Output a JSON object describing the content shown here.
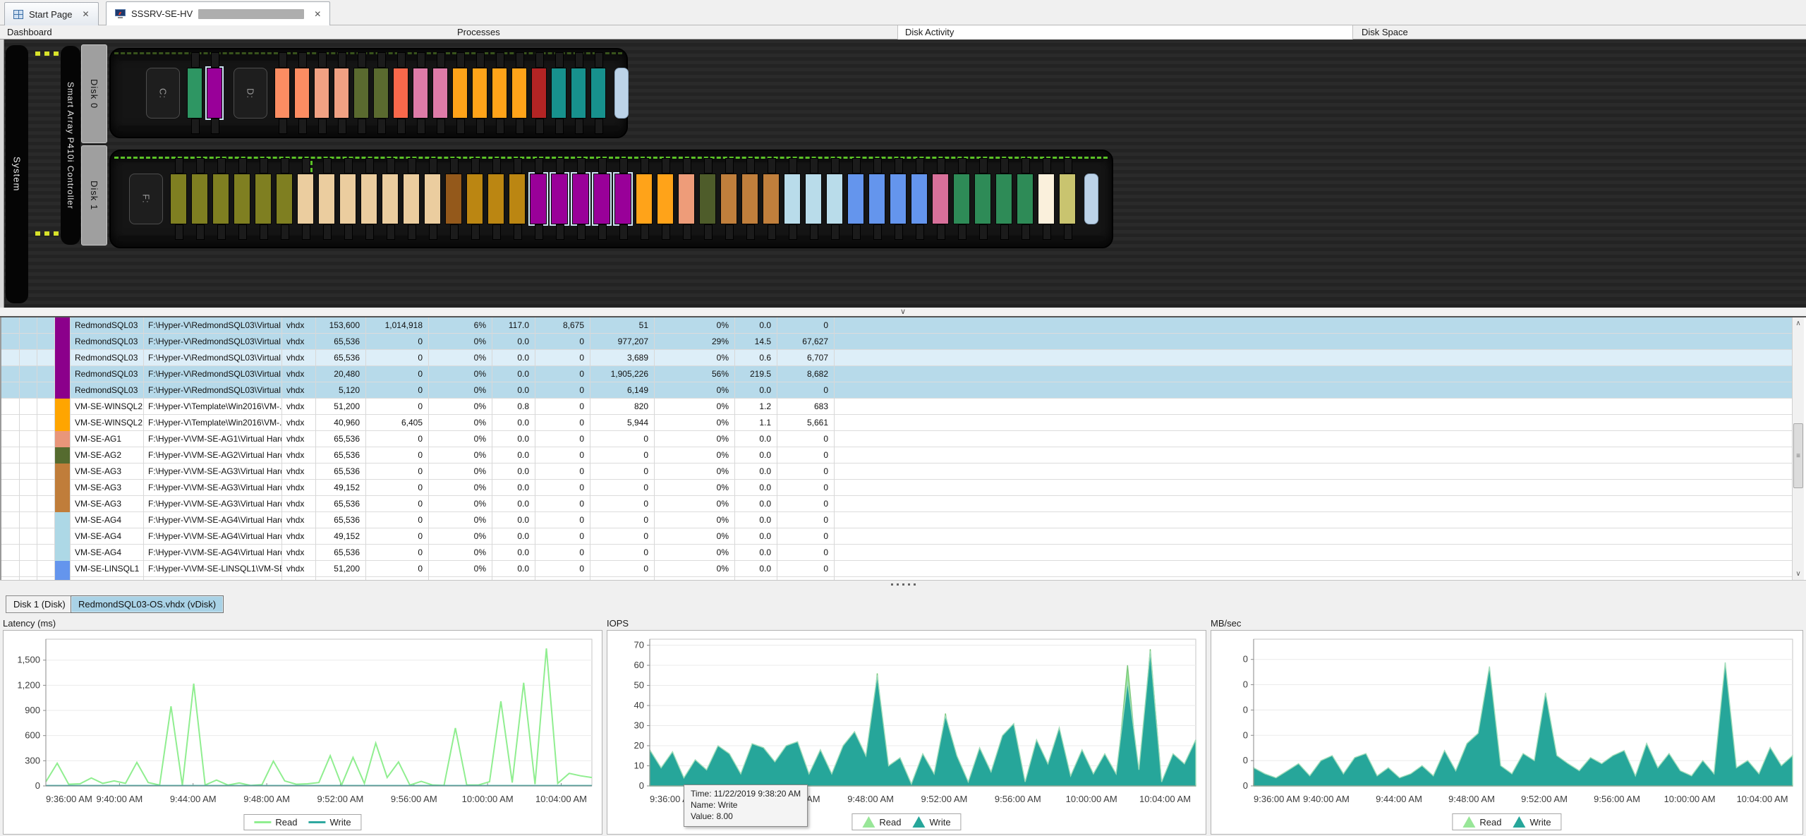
{
  "tabs": {
    "start_page": "Start Page",
    "server_tab": "SSSRV-SE-HV",
    "close_glyph": "✕"
  },
  "sections": {
    "dashboard": "Dashboard",
    "processes": "Processes",
    "disk_activity": "Disk Activity",
    "disk_space": "Disk Space"
  },
  "dashboard": {
    "system_label": "System",
    "controller_label": "Smart Array P410i Controller",
    "disk0_label": "Disk 0",
    "disk1_label": "Disk 1",
    "disk0_segments": [
      {
        "label": "C:"
      },
      {
        "blocks": [
          [
            "#2E9663",
            1,
            false
          ],
          [
            "#990099",
            1,
            true
          ]
        ]
      },
      {
        "label": "D:"
      },
      {
        "blocks": [
          [
            "#FC8D62",
            2,
            false
          ],
          [
            "#F0A183",
            2,
            false
          ],
          [
            "#5A6A2F",
            2,
            false
          ],
          [
            "#F9684B",
            1,
            false
          ],
          [
            "#DE7BA8",
            2,
            false
          ],
          [
            "#FFA319",
            4,
            false
          ],
          [
            "#B32424",
            1,
            false
          ],
          [
            "#17918D",
            3,
            false
          ]
        ]
      },
      {
        "endcap": true
      }
    ],
    "disk1_segments": [
      {
        "label": "F:"
      },
      {
        "blocks": [
          [
            "#7F7F21",
            6,
            false
          ],
          [
            "#EBCD9F",
            7,
            false
          ],
          [
            "#94591B",
            1,
            false
          ],
          [
            "#BB8612",
            3,
            false
          ],
          [
            "#990099",
            5,
            true
          ],
          [
            "#FFA319",
            2,
            false
          ],
          [
            "#EE9C79",
            1,
            false
          ],
          [
            "#4E5C2A",
            1,
            false
          ],
          [
            "#C07F3C",
            3,
            false
          ],
          [
            "#B9DCEA",
            3,
            false
          ],
          [
            "#6495ED",
            4,
            false
          ],
          [
            "#D8709A",
            1,
            false
          ],
          [
            "#2E8B57",
            4,
            false
          ],
          [
            "#FAF0DC",
            1,
            false
          ],
          [
            "#C9C46F",
            1,
            false
          ]
        ]
      },
      {
        "endcap": true
      }
    ]
  },
  "table": {
    "rows": [
      {
        "swatch": "#8B008B",
        "selected": true,
        "focus": false,
        "name": "RedmondSQL03",
        "path": "F:\\Hyper-V\\RedmondSQL03\\Virtual ...",
        "type": "vhdx",
        "cells": [
          "153,600",
          "1,014,918",
          "6%",
          "117.0",
          "8,675",
          "51",
          "0%",
          "0.0",
          "0"
        ]
      },
      {
        "swatch": "#8B008B",
        "selected": true,
        "focus": false,
        "name": "RedmondSQL03",
        "path": "F:\\Hyper-V\\RedmondSQL03\\Virtual ...",
        "type": "vhdx",
        "cells": [
          "65,536",
          "0",
          "0%",
          "0.0",
          "0",
          "977,207",
          "29%",
          "14.5",
          "67,627"
        ]
      },
      {
        "swatch": "#8B008B",
        "selected": true,
        "focus": true,
        "name": "RedmondSQL03",
        "path": "F:\\Hyper-V\\RedmondSQL03\\Virtual ...",
        "type": "vhdx",
        "cells": [
          "65,536",
          "0",
          "0%",
          "0.0",
          "0",
          "3,689",
          "0%",
          "0.6",
          "6,707"
        ]
      },
      {
        "swatch": "#8B008B",
        "selected": true,
        "focus": false,
        "name": "RedmondSQL03",
        "path": "F:\\Hyper-V\\RedmondSQL03\\Virtual ...",
        "type": "vhdx",
        "cells": [
          "20,480",
          "0",
          "0%",
          "0.0",
          "0",
          "1,905,226",
          "56%",
          "219.5",
          "8,682"
        ]
      },
      {
        "swatch": "#8B008B",
        "selected": true,
        "focus": false,
        "name": "RedmondSQL03",
        "path": "F:\\Hyper-V\\RedmondSQL03\\Virtual ...",
        "type": "vhdx",
        "cells": [
          "5,120",
          "0",
          "0%",
          "0.0",
          "0",
          "6,149",
          "0%",
          "0.0",
          "0"
        ]
      },
      {
        "swatch": "#FFA500",
        "selected": false,
        "focus": false,
        "name": "VM-SE-WINSQL2",
        "path": "F:\\Hyper-V\\Template\\Win2016\\VM-...",
        "type": "vhdx",
        "cells": [
          "51,200",
          "0",
          "0%",
          "0.8",
          "0",
          "820",
          "0%",
          "1.2",
          "683"
        ]
      },
      {
        "swatch": "#FFA500",
        "selected": false,
        "focus": false,
        "name": "VM-SE-WINSQL2",
        "path": "F:\\Hyper-V\\Template\\Win2016\\VM-...",
        "type": "vhdx",
        "cells": [
          "40,960",
          "6,405",
          "0%",
          "0.0",
          "0",
          "5,944",
          "0%",
          "1.1",
          "5,661"
        ]
      },
      {
        "swatch": "#E9967A",
        "selected": false,
        "focus": false,
        "name": "VM-SE-AG1",
        "path": "F:\\Hyper-V\\VM-SE-AG1\\Virtual Hard ...",
        "type": "vhdx",
        "cells": [
          "65,536",
          "0",
          "0%",
          "0.0",
          "0",
          "0",
          "0%",
          "0.0",
          "0"
        ]
      },
      {
        "swatch": "#556B2F",
        "selected": false,
        "focus": false,
        "name": "VM-SE-AG2",
        "path": "F:\\Hyper-V\\VM-SE-AG2\\Virtual Hard ...",
        "type": "vhdx",
        "cells": [
          "65,536",
          "0",
          "0%",
          "0.0",
          "0",
          "0",
          "0%",
          "0.0",
          "0"
        ]
      },
      {
        "swatch": "#C07D3A",
        "selected": false,
        "focus": false,
        "name": "VM-SE-AG3",
        "path": "F:\\Hyper-V\\VM-SE-AG3\\Virtual Hard ...",
        "type": "vhdx",
        "cells": [
          "65,536",
          "0",
          "0%",
          "0.0",
          "0",
          "0",
          "0%",
          "0.0",
          "0"
        ]
      },
      {
        "swatch": "#C07D3A",
        "selected": false,
        "focus": false,
        "name": "VM-SE-AG3",
        "path": "F:\\Hyper-V\\VM-SE-AG3\\Virtual Hard ...",
        "type": "vhdx",
        "cells": [
          "49,152",
          "0",
          "0%",
          "0.0",
          "0",
          "0",
          "0%",
          "0.0",
          "0"
        ]
      },
      {
        "swatch": "#C07D3A",
        "selected": false,
        "focus": false,
        "name": "VM-SE-AG3",
        "path": "F:\\Hyper-V\\VM-SE-AG3\\Virtual Hard ...",
        "type": "vhdx",
        "cells": [
          "65,536",
          "0",
          "0%",
          "0.0",
          "0",
          "0",
          "0%",
          "0.0",
          "0"
        ]
      },
      {
        "swatch": "#ADD8E6",
        "selected": false,
        "focus": false,
        "name": "VM-SE-AG4",
        "path": "F:\\Hyper-V\\VM-SE-AG4\\Virtual Hard ...",
        "type": "vhdx",
        "cells": [
          "65,536",
          "0",
          "0%",
          "0.0",
          "0",
          "0",
          "0%",
          "0.0",
          "0"
        ]
      },
      {
        "swatch": "#ADD8E6",
        "selected": false,
        "focus": false,
        "name": "VM-SE-AG4",
        "path": "F:\\Hyper-V\\VM-SE-AG4\\Virtual Hard ...",
        "type": "vhdx",
        "cells": [
          "49,152",
          "0",
          "0%",
          "0.0",
          "0",
          "0",
          "0%",
          "0.0",
          "0"
        ]
      },
      {
        "swatch": "#ADD8E6",
        "selected": false,
        "focus": false,
        "name": "VM-SE-AG4",
        "path": "F:\\Hyper-V\\VM-SE-AG4\\Virtual Hard ...",
        "type": "vhdx",
        "cells": [
          "65,536",
          "0",
          "0%",
          "0.0",
          "0",
          "0",
          "0%",
          "0.0",
          "0"
        ]
      },
      {
        "swatch": "#6495ED",
        "selected": false,
        "focus": false,
        "name": "VM-SE-LINSQL1",
        "path": "F:\\Hyper-V\\VM-SE-LINSQL1\\VM-SE-...",
        "type": "vhdx",
        "cells": [
          "51,200",
          "0",
          "0%",
          "0.0",
          "0",
          "0",
          "0%",
          "0.0",
          "0"
        ]
      },
      {
        "swatch": "#6495ED",
        "selected": false,
        "focus": false,
        "name": "",
        "path": "",
        "type": "",
        "cells": [
          "",
          "",
          "",
          "",
          "",
          "",
          "",
          "",
          ""
        ]
      }
    ]
  },
  "vdisk_tabs": {
    "disk_tab": "Disk 1 (Disk)",
    "vdisk_tab": "RedmondSQL03-OS.vhdx (vDisk)"
  },
  "tooltip": {
    "time": "Time: 11/22/2019 9:38:20 AM",
    "name": "Name: Write",
    "value": "Value: 8.00"
  },
  "colors": {
    "read_green": "#90EE90",
    "write_teal": "#26A69A",
    "selection_blue": "#B7DAEA",
    "selected_block_outline": "#CFE3F5"
  },
  "chart_data": [
    {
      "type": "line",
      "title": "Latency (ms)",
      "ylabel": "ms",
      "y_max": 1750,
      "y_ticks": [
        {
          "v": 1500,
          "label": "1,500"
        },
        {
          "v": 1200,
          "label": "1,200"
        },
        {
          "v": 900,
          "label": "900"
        },
        {
          "v": 600,
          "label": "600"
        },
        {
          "v": 300,
          "label": "300"
        },
        {
          "v": 0,
          "label": "0"
        }
      ],
      "x_labels": [
        "9:36:00 AM",
        "9:40:00 AM",
        "9:44:00 AM",
        "9:48:00 AM",
        "9:52:00 AM",
        "9:56:00 AM",
        "10:00:00 AM",
        "10:04:00 AM"
      ],
      "x_span_s": 1780,
      "x_step_s": 240,
      "legend_position": "bottom",
      "grid": true,
      "series": [
        {
          "name": "Read",
          "color": "#90EE90",
          "values": [
            50,
            270,
            20,
            25,
            95,
            30,
            60,
            30,
            280,
            40,
            10,
            950,
            5,
            1220,
            10,
            70,
            10,
            35,
            5,
            15,
            295,
            60,
            20,
            25,
            40,
            360,
            10,
            340,
            30,
            510,
            100,
            285,
            10,
            55,
            10,
            5,
            690,
            10,
            10,
            50,
            1010,
            40,
            1230,
            20,
            1640,
            30,
            150,
            120,
            100
          ]
        },
        {
          "name": "Write",
          "color": "#2FA8A0",
          "values": [
            3,
            3,
            3,
            3,
            3,
            3,
            3,
            3,
            3,
            3,
            3,
            3,
            3,
            3,
            3,
            3,
            3,
            3,
            3,
            3,
            3,
            3,
            3,
            3,
            3,
            3,
            3,
            3,
            3,
            3,
            3,
            3,
            3,
            3,
            3,
            3,
            3,
            3,
            3,
            3,
            3,
            3,
            3,
            3,
            3,
            3,
            3,
            3,
            3
          ]
        }
      ]
    },
    {
      "type": "area",
      "title": "IOPS",
      "ylabel": "IOPS",
      "y_max": 73,
      "y_ticks": [
        {
          "v": 70,
          "label": "70"
        },
        {
          "v": 60,
          "label": "60"
        },
        {
          "v": 50,
          "label": "50"
        },
        {
          "v": 40,
          "label": "40"
        },
        {
          "v": 30,
          "label": "30"
        },
        {
          "v": 20,
          "label": "20"
        },
        {
          "v": 10,
          "label": "10"
        },
        {
          "v": 0,
          "label": "0"
        }
      ],
      "x_labels": [
        "9:36:00 AM",
        "9:40:00 AM",
        "9:44:00 AM",
        "9:48:00 AM",
        "9:52:00 AM",
        "9:56:00 AM",
        "10:00:00 AM",
        "10:04:00 AM"
      ],
      "x_span_s": 1780,
      "x_step_s": 240,
      "legend_position": "bottom",
      "grid": true,
      "series": [
        {
          "name": "Read",
          "color": "#98E698",
          "stroke": "#7CC87C",
          "values": [
            1,
            1,
            1,
            1,
            1,
            1,
            1,
            1,
            1,
            1,
            1,
            1,
            1,
            1,
            1,
            1,
            1,
            1,
            1,
            1,
            56,
            1,
            1,
            1,
            1,
            1,
            36,
            1,
            1,
            1,
            1,
            1,
            1,
            1,
            1,
            1,
            1,
            1,
            1,
            1,
            1,
            1,
            60,
            1,
            68,
            1,
            1,
            1,
            1
          ]
        },
        {
          "name": "Write",
          "color": "#26A69A",
          "stroke": "#9FDCB9",
          "values": [
            18,
            9,
            17,
            4,
            13,
            8,
            20,
            16,
            6,
            21,
            19,
            12,
            20,
            22,
            6,
            18,
            6,
            20,
            27,
            15,
            55,
            10,
            14,
            1,
            16,
            6,
            35,
            15,
            2,
            19,
            7,
            25,
            31,
            2,
            23,
            11,
            29,
            5,
            18,
            6,
            16,
            6,
            52,
            8,
            67,
            2,
            16,
            11,
            23
          ]
        }
      ]
    },
    {
      "type": "area",
      "title": "MB/sec",
      "ylabel": "MB/sec",
      "y_max": 1.45,
      "y_ticks": [
        {
          "v": 1.25,
          "label": "0"
        },
        {
          "v": 1.0,
          "label": "0"
        },
        {
          "v": 0.75,
          "label": "0"
        },
        {
          "v": 0.5,
          "label": "0"
        },
        {
          "v": 0.25,
          "label": "0"
        },
        {
          "v": 0,
          "label": "0"
        }
      ],
      "x_labels": [
        "9:36:00 AM",
        "9:40:00 AM",
        "9:44:00 AM",
        "9:48:00 AM",
        "9:52:00 AM",
        "9:56:00 AM",
        "10:00:00 AM",
        "10:04:00 AM"
      ],
      "x_span_s": 1780,
      "x_step_s": 240,
      "legend_position": "bottom",
      "grid": true,
      "series": [
        {
          "name": "Read",
          "color": "#98E698",
          "stroke": "#7CC87C",
          "values": [
            0.02,
            0.02,
            0.02,
            0.02,
            0.02,
            0.02,
            0.02,
            0.02,
            0.02,
            0.02,
            0.02,
            0.02,
            0.02,
            0.02,
            0.02,
            0.02,
            0.02,
            0.02,
            0.02,
            0.02,
            0.02,
            0.02,
            0.02,
            0.02,
            0.02,
            0.02,
            0.02,
            0.02,
            0.02,
            0.02,
            0.02,
            0.02,
            0.02,
            0.02,
            0.02,
            0.02,
            0.02,
            0.02,
            0.02,
            0.02,
            0.02,
            0.02,
            0.02,
            0.02,
            0.02,
            0.02,
            0.02,
            0.02,
            0.02
          ]
        },
        {
          "name": "Write",
          "color": "#26A69A",
          "stroke": "#9FDCB9",
          "values": [
            0.18,
            0.12,
            0.08,
            0.15,
            0.22,
            0.1,
            0.25,
            0.3,
            0.12,
            0.28,
            0.32,
            0.1,
            0.18,
            0.08,
            0.12,
            0.2,
            0.1,
            0.35,
            0.15,
            0.42,
            0.52,
            1.18,
            0.2,
            0.12,
            0.32,
            0.25,
            0.92,
            0.3,
            0.22,
            0.15,
            0.28,
            0.22,
            0.3,
            0.35,
            0.1,
            0.42,
            0.18,
            0.32,
            0.15,
            0.1,
            0.25,
            0.12,
            1.22,
            0.18,
            0.25,
            0.12,
            0.38,
            0.2,
            0.3
          ]
        }
      ]
    }
  ]
}
